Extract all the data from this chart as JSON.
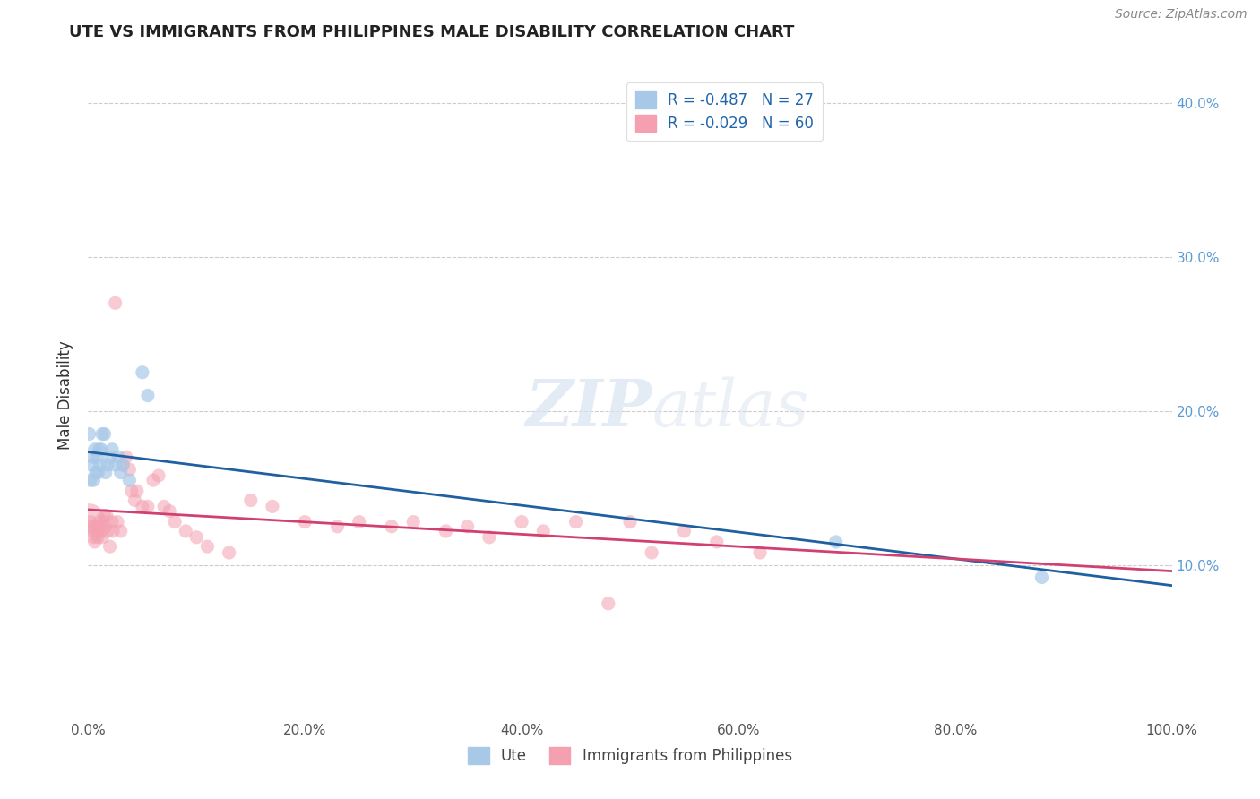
{
  "title": "UTE VS IMMIGRANTS FROM PHILIPPINES MALE DISABILITY CORRELATION CHART",
  "source": "Source: ZipAtlas.com",
  "ylabel": "Male Disability",
  "legend_label1": "R = -0.487   N = 27",
  "legend_label2": "R = -0.029   N = 60",
  "legend_label_bottom1": "Ute",
  "legend_label_bottom2": "Immigrants from Philippines",
  "blue_color": "#a8c8e8",
  "pink_color": "#f4a0b0",
  "blue_line_color": "#2060a0",
  "pink_line_color": "#d04070",
  "watermark_zip": "ZIP",
  "watermark_atlas": "atlas",
  "right_tick_color": "#5b9bd5",
  "xlim": [
    0,
    1.0
  ],
  "ylim": [
    0,
    0.42
  ],
  "figsize": [
    14.06,
    8.92
  ],
  "dpi": 100,
  "background_color": "#ffffff",
  "grid_color": "#cccccc",
  "ute_x": [
    0.001,
    0.002,
    0.003,
    0.004,
    0.005,
    0.006,
    0.007,
    0.008,
    0.009,
    0.01,
    0.011,
    0.012,
    0.013,
    0.015,
    0.016,
    0.018,
    0.02,
    0.022,
    0.025,
    0.028,
    0.03,
    0.032,
    0.038,
    0.05,
    0.055,
    0.69,
    0.88
  ],
  "ute_y": [
    0.185,
    0.155,
    0.165,
    0.17,
    0.155,
    0.175,
    0.16,
    0.17,
    0.16,
    0.175,
    0.165,
    0.175,
    0.185,
    0.185,
    0.16,
    0.165,
    0.17,
    0.175,
    0.165,
    0.17,
    0.16,
    0.165,
    0.155,
    0.225,
    0.21,
    0.115,
    0.092
  ],
  "ute_size": [
    80,
    80,
    80,
    80,
    80,
    80,
    80,
    80,
    80,
    80,
    80,
    80,
    80,
    80,
    80,
    80,
    80,
    80,
    80,
    80,
    80,
    80,
    80,
    80,
    80,
    80,
    80
  ],
  "phi_x": [
    0.001,
    0.002,
    0.003,
    0.004,
    0.005,
    0.006,
    0.007,
    0.008,
    0.009,
    0.01,
    0.011,
    0.012,
    0.013,
    0.014,
    0.015,
    0.016,
    0.017,
    0.018,
    0.02,
    0.022,
    0.023,
    0.025,
    0.027,
    0.03,
    0.032,
    0.035,
    0.038,
    0.04,
    0.043,
    0.045,
    0.05,
    0.055,
    0.06,
    0.065,
    0.07,
    0.075,
    0.08,
    0.09,
    0.1,
    0.11,
    0.13,
    0.15,
    0.17,
    0.2,
    0.23,
    0.25,
    0.28,
    0.3,
    0.33,
    0.35,
    0.37,
    0.4,
    0.42,
    0.45,
    0.48,
    0.5,
    0.52,
    0.55,
    0.58,
    0.62
  ],
  "phi_y": [
    0.13,
    0.128,
    0.125,
    0.122,
    0.118,
    0.115,
    0.125,
    0.12,
    0.118,
    0.128,
    0.125,
    0.122,
    0.118,
    0.128,
    0.132,
    0.125,
    0.132,
    0.122,
    0.112,
    0.128,
    0.122,
    0.27,
    0.128,
    0.122,
    0.165,
    0.17,
    0.162,
    0.148,
    0.142,
    0.148,
    0.138,
    0.138,
    0.155,
    0.158,
    0.138,
    0.135,
    0.128,
    0.122,
    0.118,
    0.112,
    0.108,
    0.142,
    0.138,
    0.128,
    0.125,
    0.128,
    0.125,
    0.128,
    0.122,
    0.125,
    0.118,
    0.128,
    0.122,
    0.128,
    0.075,
    0.128,
    0.108,
    0.122,
    0.115,
    0.108
  ],
  "phi_size_large_idx": 0,
  "phi_size_large": 600
}
